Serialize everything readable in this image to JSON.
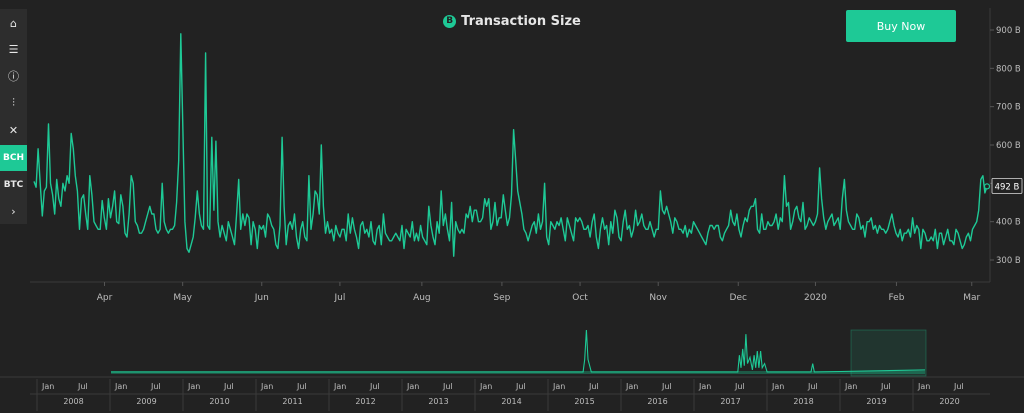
{
  "header": {
    "title": "Transaction Size",
    "logo_glyph": "B",
    "buy_label": "Buy Now"
  },
  "sidebar": {
    "items": [
      {
        "name": "home-icon",
        "glyph": "⌂"
      },
      {
        "name": "list-icon",
        "glyph": "☰"
      },
      {
        "name": "info-icon",
        "glyph": "ⓘ"
      },
      {
        "name": "sliders-icon",
        "glyph": "⫶"
      },
      {
        "name": "tools-icon",
        "glyph": "✕"
      },
      {
        "name": "sidebar-item-bch",
        "label": "BCH",
        "active": true
      },
      {
        "name": "sidebar-item-btc",
        "label": "BTC"
      },
      {
        "name": "chevron-right-icon",
        "glyph": "›"
      }
    ]
  },
  "colors": {
    "line": "#1ec996",
    "background": "#222222",
    "navigator_fill": "#1e5a47",
    "selection": "#1ec996"
  },
  "chart_data": {
    "type": "line",
    "title": "Transaction Size",
    "ylabel": "",
    "y_unit": "B",
    "ylim": [
      300,
      900
    ],
    "y_ticks": [
      "900 B",
      "800 B",
      "700 B",
      "600 B",
      "500 B",
      "400 B",
      "300 B"
    ],
    "x_ticks": [
      "Apr",
      "May",
      "Jun",
      "Jul",
      "Aug",
      "Sep",
      "Oct",
      "Nov",
      "Dec",
      "2020",
      "Feb",
      "Mar"
    ],
    "current_value_label": "492 B",
    "grid": false,
    "series": [
      {
        "values": [
          505,
          490,
          590,
          500,
          415,
          480,
          490,
          655,
          500,
          470,
          420,
          510,
          460,
          440,
          500,
          480,
          520,
          500,
          630,
          590,
          520,
          480,
          380,
          460,
          470,
          420,
          380,
          520,
          470,
          400,
          390,
          380,
          380,
          455,
          410,
          380,
          460,
          410,
          440,
          480,
          400,
          395,
          470,
          440,
          370,
          360,
          420,
          520,
          500,
          400,
          390,
          370,
          370,
          380,
          400,
          420,
          440,
          420,
          420,
          380,
          370,
          380,
          500,
          400,
          380,
          370,
          380,
          380,
          390,
          450,
          560,
          890,
          650,
          400,
          330,
          320,
          340,
          360,
          410,
          480,
          420,
          390,
          380,
          840,
          390,
          380,
          620,
          430,
          610,
          400,
          360,
          390,
          370,
          350,
          400,
          380,
          360,
          340,
          420,
          510,
          380,
          420,
          390,
          420,
          410,
          340,
          400,
          380,
          330,
          390,
          380,
          390,
          360,
          420,
          410,
          390,
          380,
          340,
          330,
          390,
          620,
          440,
          340,
          390,
          400,
          380,
          420,
          360,
          330,
          380,
          400,
          360,
          350,
          520,
          380,
          420,
          480,
          470,
          420,
          600,
          440,
          370,
          400,
          370,
          380,
          350,
          390,
          370,
          360,
          380,
          380,
          350,
          420,
          370,
          410,
          380,
          360,
          330,
          390,
          400,
          370,
          380,
          360,
          400,
          350,
          340,
          380,
          390,
          340,
          420,
          370,
          360,
          350,
          350,
          360,
          370,
          360,
          350,
          390,
          330,
          380,
          370,
          360,
          400,
          350,
          370,
          350,
          390,
          360,
          350,
          340,
          440,
          390,
          360,
          340,
          400,
          370,
          480,
          390,
          420,
          380,
          350,
          450,
          310,
          400,
          380,
          370,
          380,
          370,
          420,
          410,
          440,
          400,
          430,
          430,
          400,
          400,
          410,
          460,
          440,
          460,
          380,
          400,
          450,
          390,
          410,
          410,
          470,
          430,
          390,
          410,
          470,
          640,
          560,
          480,
          450,
          420,
          380,
          370,
          350,
          370,
          390,
          400,
          370,
          420,
          380,
          400,
          500,
          360,
          340,
          400,
          390,
          380,
          400,
          390,
          410,
          380,
          350,
          410,
          390,
          370,
          350,
          410,
          400,
          410,
          400,
          380,
          380,
          390,
          360,
          400,
          420,
          360,
          330,
          380,
          410,
          380,
          390,
          340,
          400,
          370,
          430,
          410,
          360,
          350,
          400,
          430,
          380,
          390,
          360,
          380,
          430,
          390,
          400,
          420,
          390,
          380,
          380,
          400,
          380,
          360,
          380,
          380,
          480,
          430,
          420,
          440,
          420,
          400,
          370,
          410,
          400,
          380,
          380,
          370,
          390,
          360,
          380,
          370,
          400,
          390,
          380,
          370,
          360,
          350,
          340,
          370,
          390,
          390,
          380,
          390,
          390,
          360,
          350,
          370,
          380,
          390,
          430,
          400,
          390,
          420,
          380,
          360,
          390,
          410,
          400,
          430,
          440,
          440,
          460,
          380,
          370,
          420,
          380,
          380,
          400,
          390,
          390,
          400,
          420,
          380,
          410,
          400,
          520,
          440,
          450,
          380,
          400,
          430,
          440,
          410,
          400,
          450,
          380,
          390,
          410,
          400,
          390,
          400,
          420,
          540,
          460,
          410,
          380,
          400,
          410,
          420,
          390,
          400,
          410,
          380,
          460,
          510,
          430,
          400,
          390,
          380,
          380,
          420,
          410,
          380,
          390,
          360,
          400,
          400,
          410,
          380,
          390,
          370,
          390,
          380,
          380,
          370,
          380,
          400,
          420,
          390,
          370,
          360,
          380,
          350,
          370,
          370,
          380,
          360,
          410,
          370,
          390,
          380,
          330,
          380,
          370,
          350,
          350,
          360,
          350,
          380,
          330,
          370,
          370,
          340,
          360,
          380,
          350,
          350,
          340,
          380,
          370,
          350,
          330,
          340,
          360,
          370,
          350,
          380,
          390,
          400,
          430,
          510,
          520,
          475,
          492
        ]
      }
    ],
    "navigator": {
      "years": [
        "2008",
        "2009",
        "2010",
        "2011",
        "2012",
        "2013",
        "2014",
        "2015",
        "2016",
        "2017",
        "2018",
        "2019",
        "2020"
      ],
      "months": [
        "Jan",
        "Jul"
      ]
    }
  }
}
